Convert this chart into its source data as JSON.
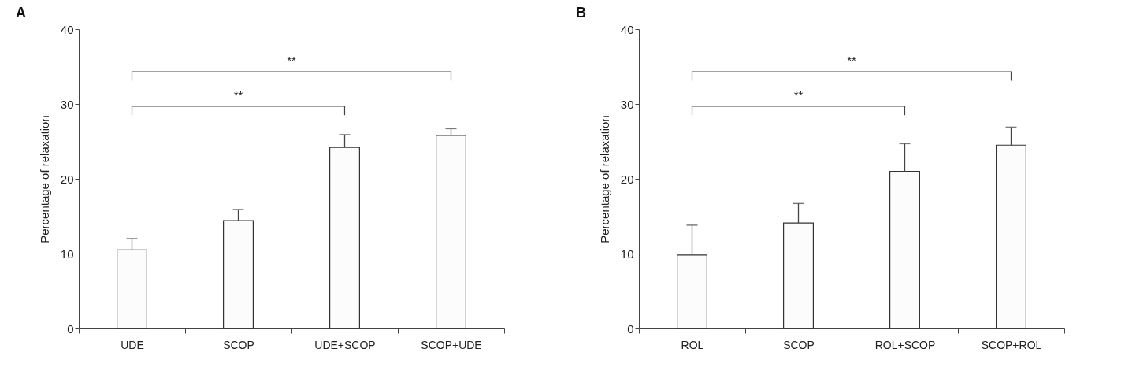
{
  "chart_data": [
    {
      "type": "bar",
      "title": "A",
      "ylabel": "Percentage of relaxation",
      "categories": [
        "UDE",
        "SCOP",
        "UDE+SCOP",
        "SCOP+UDE"
      ],
      "values": [
        10.5,
        14.4,
        24.2,
        25.8
      ],
      "errors": [
        [
          10.5,
          12.0
        ],
        [
          14.4,
          15.9
        ],
        [
          24.2,
          25.9
        ],
        [
          25.8,
          26.7
        ]
      ],
      "color": "#fcfcfc",
      "ylim": [
        0,
        40
      ],
      "yticks": [
        0,
        10,
        20,
        30,
        40
      ],
      "annotations": [
        "**",
        "**"
      ]
    },
    {
      "type": "bar",
      "title": "B",
      "ylabel": "Percentage of relaxation",
      "categories": [
        "ROL",
        "SCOP",
        "ROL+SCOP",
        "SCOP+ROL"
      ],
      "values": [
        9.8,
        14.1,
        21.0,
        24.5
      ],
      "errors": [
        [
          9.8,
          13.8
        ],
        [
          14.1,
          16.7
        ],
        [
          21.0,
          24.7
        ],
        [
          24.5,
          26.9
        ]
      ],
      "color": "#fcfcfc",
      "ylim": [
        0,
        40
      ],
      "yticks": [
        0,
        10,
        20,
        30,
        40
      ],
      "annotations": [
        "**",
        "**"
      ]
    }
  ]
}
